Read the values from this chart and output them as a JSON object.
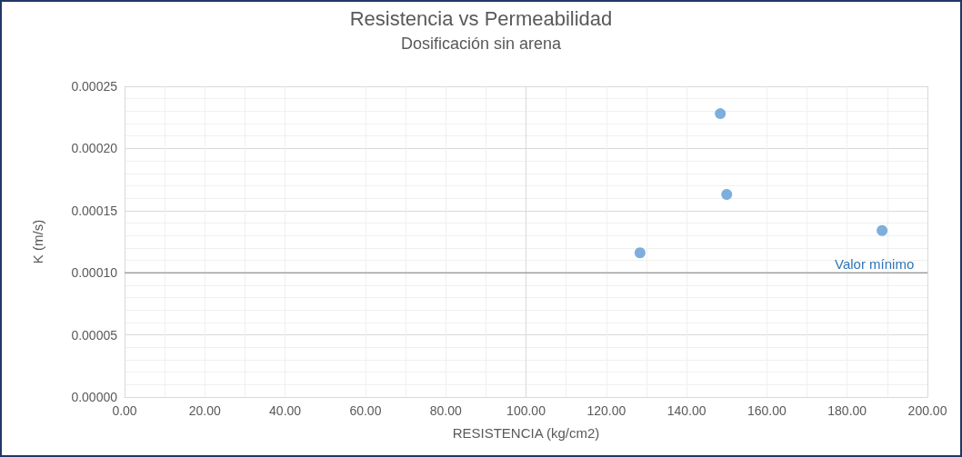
{
  "chart_data": {
    "type": "scatter",
    "title": "Resistencia vs Permeabilidad",
    "subtitle": "Dosificación sin arena",
    "xlabel": "RESISTENCIA (kg/cm2)",
    "ylabel": "K (m/s)",
    "x": [
      128.4,
      148.4,
      150.0,
      188.7
    ],
    "series": [
      {
        "color": "#5b9bd5",
        "values": [
          0.000116,
          0.000228,
          0.000163,
          0.000134
        ]
      }
    ],
    "xlim": [
      0,
      200
    ],
    "xticks": [
      {
        "value": 0,
        "label": "0.00"
      },
      {
        "value": 20,
        "label": "20.00"
      },
      {
        "value": 40,
        "label": "40.00"
      },
      {
        "value": 60,
        "label": "60.00"
      },
      {
        "value": 80,
        "label": "80.00"
      },
      {
        "value": 100,
        "label": "100.00"
      },
      {
        "value": 120,
        "label": "120.00"
      },
      {
        "value": 140,
        "label": "140.00"
      },
      {
        "value": 160,
        "label": "160.00"
      },
      {
        "value": 180,
        "label": "180.00"
      },
      {
        "value": 200,
        "label": "200.00"
      }
    ],
    "ylim": [
      0,
      0.00025
    ],
    "yticks": [
      {
        "value": 0,
        "label": "0.00000"
      },
      {
        "value": 5e-05,
        "label": "0.00005"
      },
      {
        "value": 0.0001,
        "label": "0.00010"
      },
      {
        "value": 0.00015,
        "label": "0.00015"
      },
      {
        "value": 0.0002,
        "label": "0.00020"
      },
      {
        "value": 0.00025,
        "label": "0.00025"
      }
    ],
    "ref_lines": [
      {
        "axis": "y",
        "value": 0.0001,
        "label": "Valor mínimo",
        "color": "#7f7f7f"
      }
    ],
    "grid": true,
    "marker": "circle"
  }
}
